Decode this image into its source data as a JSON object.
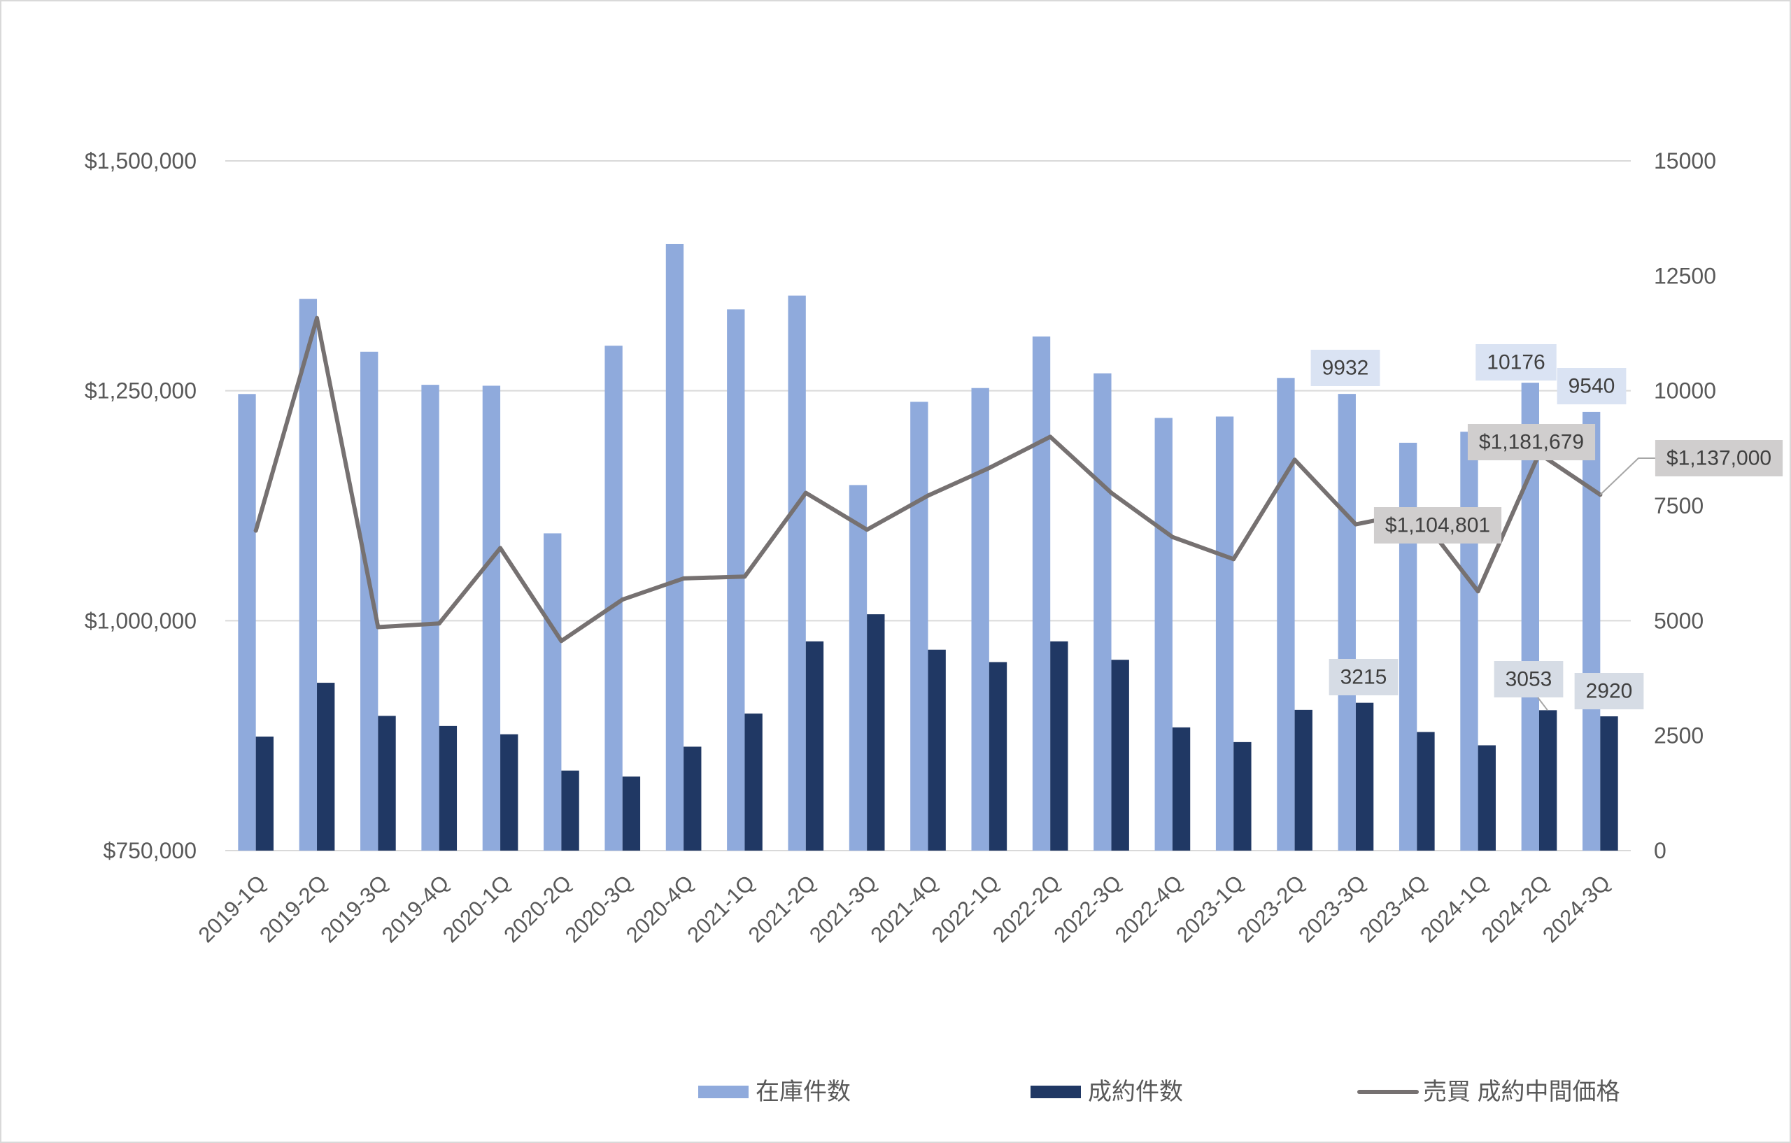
{
  "chart_data": {
    "type": "bar",
    "categories": [
      "2019-1Q",
      "2019-2Q",
      "2019-3Q",
      "2019-4Q",
      "2020-1Q",
      "2020-2Q",
      "2020-3Q",
      "2020-4Q",
      "2021-1Q",
      "2021-2Q",
      "2021-3Q",
      "2021-4Q",
      "2022-1Q",
      "2022-2Q",
      "2022-3Q",
      "2022-4Q",
      "2023-1Q",
      "2023-2Q",
      "2023-3Q",
      "2023-4Q",
      "2024-1Q",
      "2024-2Q",
      "2024-3Q"
    ],
    "series": [
      {
        "name": "在庫件数",
        "type": "bar",
        "y_axis": "right",
        "color": "#8FAADC",
        "label_bg": "#DAE3F3",
        "values": [
          9930,
          12000,
          10850,
          10130,
          10110,
          6900,
          10980,
          13190,
          11770,
          12070,
          7950,
          9760,
          10060,
          11180,
          10380,
          9410,
          9440,
          10280,
          9932,
          8870,
          9110,
          10176,
          9540
        ],
        "data_labels": [
          {
            "category": "2023-3Q",
            "text": "9932"
          },
          {
            "category": "2024-2Q",
            "text": "10176"
          },
          {
            "category": "2024-3Q",
            "text": "9540"
          }
        ]
      },
      {
        "name": "成約件数",
        "type": "bar",
        "y_axis": "right",
        "color": "#203864",
        "label_bg": "#D6DCE5",
        "values": [
          2480,
          3650,
          2930,
          2710,
          2530,
          1740,
          1610,
          2260,
          2980,
          4550,
          5140,
          4370,
          4100,
          4550,
          4150,
          2680,
          2360,
          3060,
          3215,
          2580,
          2290,
          3053,
          2920
        ],
        "data_labels": [
          {
            "category": "2023-3Q",
            "text": "3215"
          },
          {
            "category": "2024-2Q",
            "text": "3053"
          },
          {
            "category": "2024-3Q",
            "text": "2920"
          }
        ]
      },
      {
        "name": "売買 成約中間価格",
        "type": "line",
        "y_axis": "left",
        "color": "#767171",
        "label_bg": "#D0CECE",
        "values": [
          1098000,
          1329000,
          993000,
          997000,
          1079000,
          978000,
          1023000,
          1046000,
          1048000,
          1139000,
          1099000,
          1136000,
          1166000,
          1200000,
          1139000,
          1091000,
          1067000,
          1175000,
          1104801,
          1118000,
          1032000,
          1181679,
          1137000
        ],
        "data_labels": [
          {
            "category": "2023-3Q",
            "text": "$1,104,801"
          },
          {
            "category": "2024-2Q",
            "text": "$1,181,679"
          },
          {
            "category": "2024-3Q",
            "text": "$1,137,000"
          }
        ]
      }
    ],
    "y_left": {
      "min": 750000,
      "max": 1500000,
      "ticks": [
        750000,
        1000000,
        1250000,
        1500000
      ],
      "tick_labels": [
        "$750,000",
        "$1,000,000",
        "$1,250,000",
        "$1,500,000"
      ]
    },
    "y_right": {
      "min": 0,
      "max": 15000,
      "ticks": [
        0,
        2500,
        5000,
        7500,
        10000,
        12500,
        15000
      ],
      "tick_labels": [
        "0",
        "2500",
        "5000",
        "7500",
        "10000",
        "12500",
        "15000"
      ]
    },
    "grid": true,
    "legend_position": "bottom"
  }
}
